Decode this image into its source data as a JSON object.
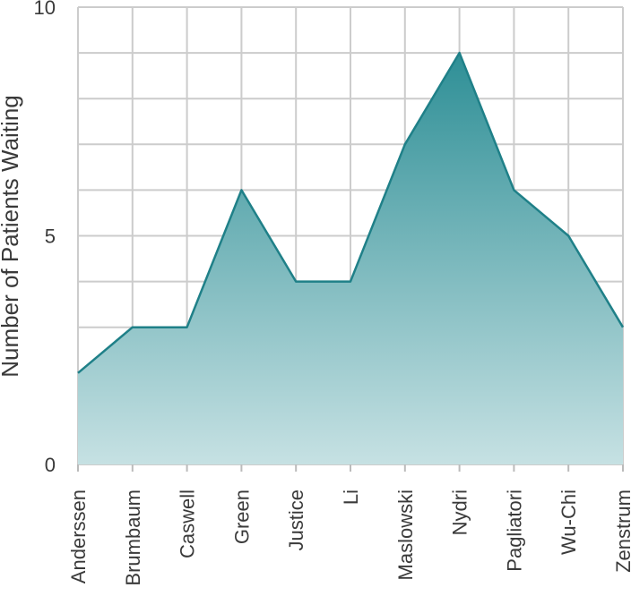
{
  "chart_data": {
    "type": "area",
    "categories": [
      "Anderssen",
      "Brumbaum",
      "Caswell",
      "Green",
      "Justice",
      "Li",
      "Maslowski",
      "Nydri",
      "Pagliatori",
      "Wu-Chi",
      "Zenstrum"
    ],
    "series": [
      {
        "values": [
          2,
          3,
          3,
          6,
          4,
          4,
          7,
          9,
          6,
          5,
          3
        ]
      }
    ],
    "title": "",
    "xlabel": "",
    "ylabel": "Number of Patients Waiting",
    "ylim": [
      0,
      10
    ],
    "yticks": [
      0,
      5,
      10
    ],
    "grid": true,
    "legend": "none",
    "colors": {
      "line": "#1f8088",
      "fill_top": "#2e8f96",
      "fill_bottom": "#c6e1e3",
      "grid": "#cccccc",
      "text": "#3a3a3a"
    }
  }
}
